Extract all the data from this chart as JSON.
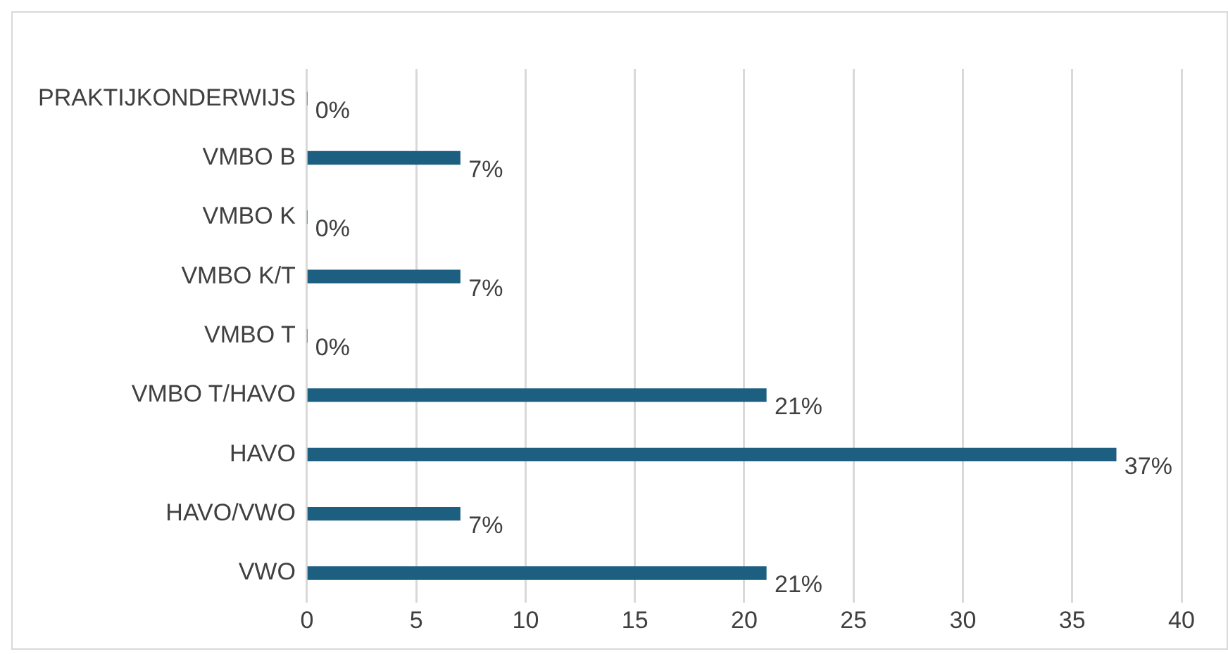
{
  "chart_data": {
    "type": "bar",
    "orientation": "horizontal",
    "categories": [
      "PRAKTIJKONDERWIJS",
      "VMBO B",
      "VMBO K",
      "VMBO K/T",
      "VMBO T",
      "VMBO T/HAVO",
      "HAVO",
      "HAVO/VWO",
      "VWO"
    ],
    "values": [
      0,
      7,
      0,
      7,
      0,
      21,
      37,
      7,
      21
    ],
    "value_labels": [
      "0%",
      "7%",
      "0%",
      "7%",
      "0%",
      "21%",
      "37%",
      "7%",
      "21%"
    ],
    "color": "#1d5f80",
    "xlim": [
      0,
      40
    ],
    "xticks": [
      0,
      5,
      10,
      15,
      20,
      25,
      30,
      35,
      40
    ],
    "grid": "x",
    "legend": false
  }
}
